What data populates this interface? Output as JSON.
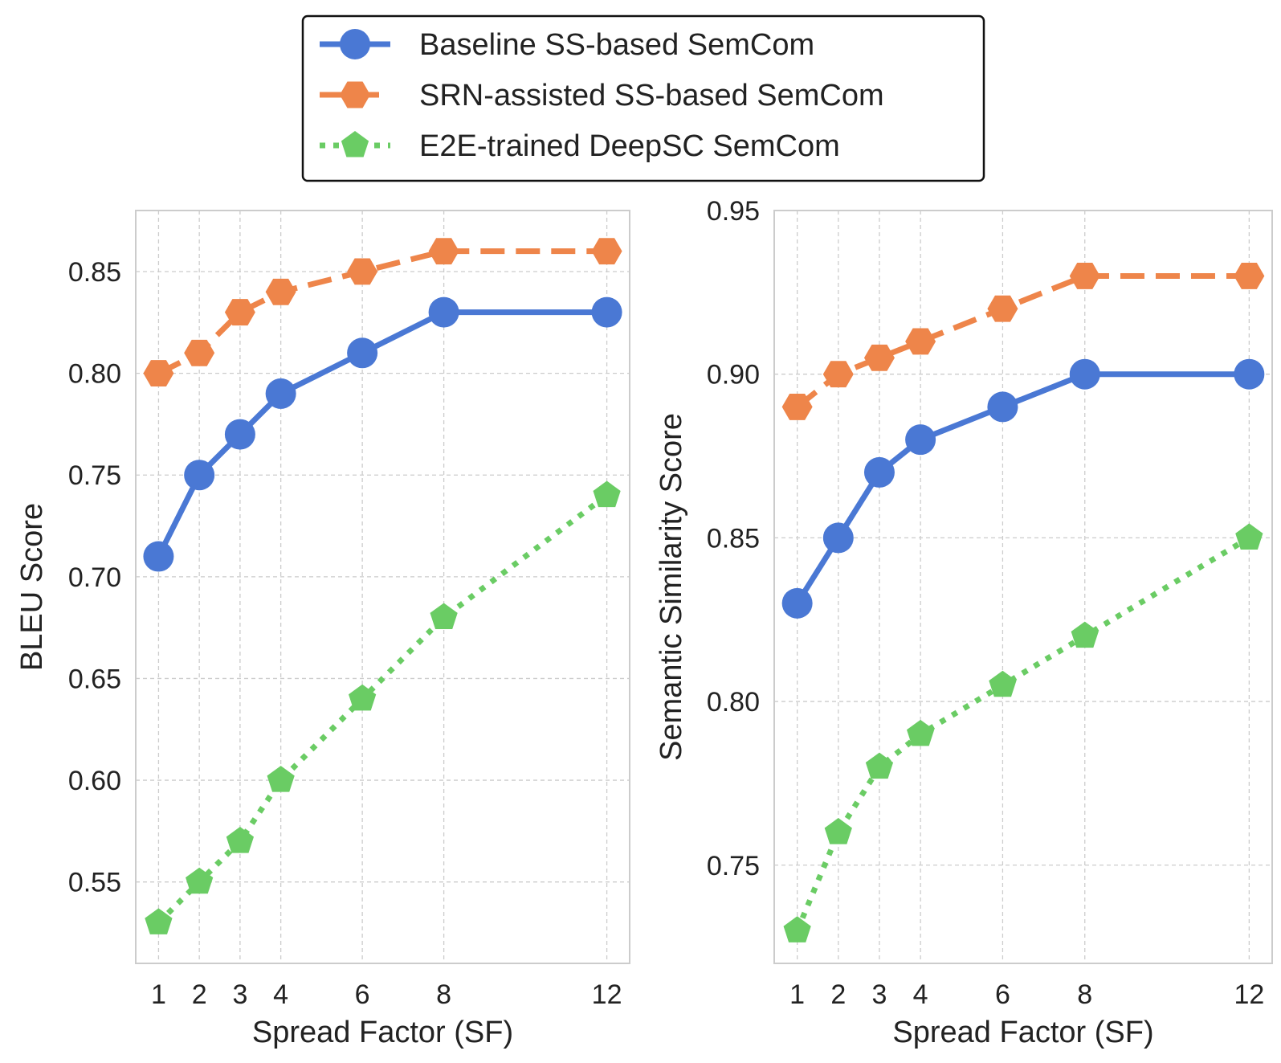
{
  "legend": {
    "entries": [
      {
        "label": "Baseline SS-based SemCom",
        "color": "#4a78d4",
        "dash": "solid",
        "marker": "circle"
      },
      {
        "label": "SRN-assisted SS-based SemCom",
        "color": "#ee854a",
        "dash": "dashed",
        "marker": "hexagon"
      },
      {
        "label": "E2E-trained DeepSC SemCom",
        "color": "#6acc64",
        "dash": "dotted",
        "marker": "pentagon"
      }
    ]
  },
  "chart_data": [
    {
      "type": "line",
      "xlabel": "Spread Factor (SF)",
      "ylabel": "BLEU Score",
      "x": [
        1,
        2,
        3,
        4,
        6,
        8,
        12
      ],
      "xticks": [
        "1",
        "2",
        "3",
        "4",
        "6",
        "8",
        "12"
      ],
      "xlim": [
        0.44,
        12.56
      ],
      "ylim": [
        0.51,
        0.88
      ],
      "yticks": [
        "0.55",
        "0.60",
        "0.65",
        "0.70",
        "0.75",
        "0.80",
        "0.85"
      ],
      "grid": true,
      "series": [
        {
          "name": "Baseline SS-based SemCom",
          "values": [
            0.71,
            0.75,
            0.77,
            0.79,
            0.81,
            0.83,
            0.83
          ]
        },
        {
          "name": "SRN-assisted SS-based SemCom",
          "values": [
            0.8,
            0.81,
            0.83,
            0.84,
            0.85,
            0.86,
            0.86
          ]
        },
        {
          "name": "E2E-trained DeepSC SemCom",
          "values": [
            0.53,
            0.55,
            0.57,
            0.6,
            0.64,
            0.68,
            0.74
          ]
        }
      ]
    },
    {
      "type": "line",
      "xlabel": "Spread Factor (SF)",
      "ylabel": "Semantic Similarity Score",
      "x": [
        1,
        2,
        3,
        4,
        6,
        8,
        12
      ],
      "xticks": [
        "1",
        "2",
        "3",
        "4",
        "6",
        "8",
        "12"
      ],
      "xlim": [
        0.44,
        12.56
      ],
      "ylim": [
        0.72,
        0.95
      ],
      "yticks": [
        "0.75",
        "0.80",
        "0.85",
        "0.90",
        "0.95"
      ],
      "grid": true,
      "series": [
        {
          "name": "Baseline SS-based SemCom",
          "values": [
            0.83,
            0.85,
            0.87,
            0.88,
            0.89,
            0.9,
            0.9
          ]
        },
        {
          "name": "SRN-assisted SS-based SemCom",
          "values": [
            0.89,
            0.9,
            0.905,
            0.91,
            0.92,
            0.93,
            0.93
          ]
        },
        {
          "name": "E2E-trained DeepSC SemCom",
          "values": [
            0.73,
            0.76,
            0.78,
            0.79,
            0.805,
            0.82,
            0.85
          ]
        }
      ]
    }
  ]
}
